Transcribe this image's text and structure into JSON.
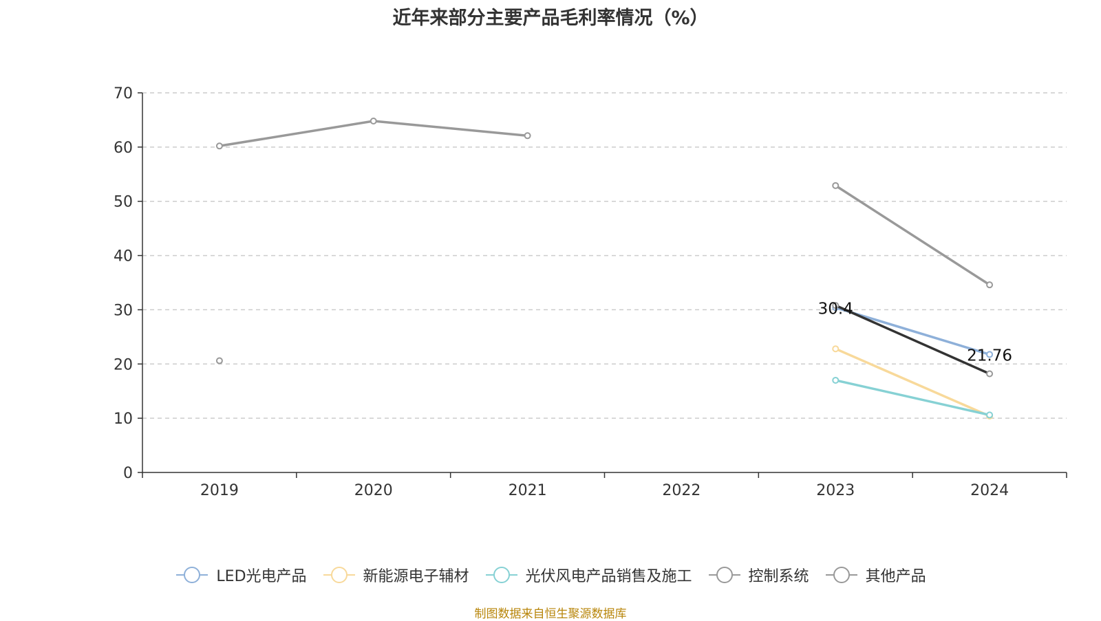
{
  "chart_data": {
    "type": "line",
    "title": "近年来部分主要产品毛利率情况（%）",
    "categories": [
      "2019",
      "2020",
      "2021",
      "2022",
      "2023",
      "2024"
    ],
    "ylim": [
      0,
      70
    ],
    "yticks": [
      0,
      10,
      20,
      30,
      40,
      50,
      60,
      70
    ],
    "grid": true,
    "legend_position": "bottom",
    "series": [
      {
        "name": "LED光电产品",
        "color": "#8eb0d9",
        "values": [
          null,
          null,
          null,
          null,
          30.4,
          21.76
        ]
      },
      {
        "name": "新能源电子辅材",
        "color": "#f8d99a",
        "values": [
          null,
          null,
          null,
          null,
          22.8,
          10.4
        ]
      },
      {
        "name": "光伏风电产品销售及施工",
        "color": "#86d1d4",
        "values": [
          null,
          null,
          null,
          null,
          17.0,
          10.6
        ]
      },
      {
        "name": "控制系统",
        "color": "#999999",
        "values": [
          60.2,
          64.8,
          62.1,
          null,
          52.9,
          34.6
        ]
      },
      {
        "name": "其他产品",
        "color": "#999999",
        "values": [
          20.6,
          null,
          null,
          null,
          30.8,
          18.2
        ]
      }
    ],
    "annotations": [
      {
        "series": "LED光电产品",
        "category": "2023",
        "label": "30.4"
      },
      {
        "series": "LED光电产品",
        "category": "2024",
        "label": "21.76"
      }
    ],
    "source": "制图数据来自恒生聚源数据库"
  }
}
